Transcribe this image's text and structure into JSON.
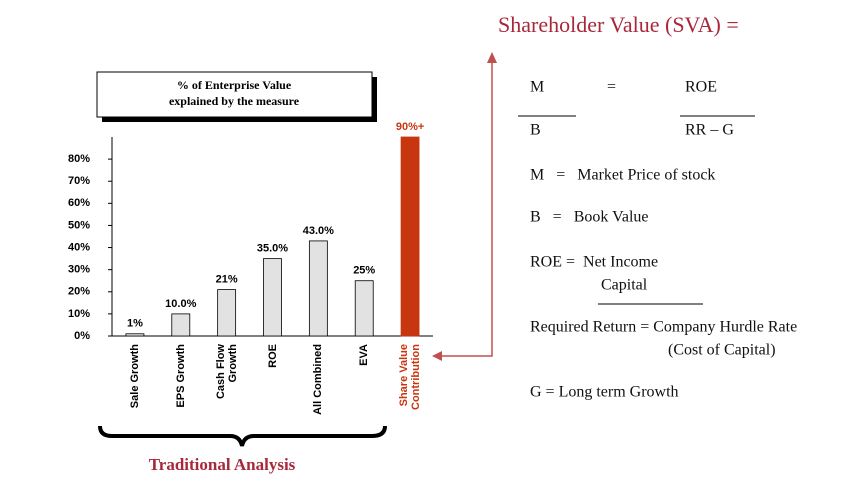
{
  "chart_data": {
    "type": "bar",
    "title": [
      "% of Enterprise Value",
      "explained by the measure"
    ],
    "categories": [
      "Sale Growth",
      "EPS Growth",
      "Cash Flow Growth",
      "ROE",
      "All Combined",
      "EVA",
      "Share Value Contribution"
    ],
    "values": [
      1,
      10,
      21,
      35,
      43,
      25,
      90
    ],
    "value_labels": [
      "1%",
      "10.0%",
      "21%",
      "35.0%",
      "43.0%",
      "25%",
      "90%+"
    ],
    "colors": [
      "#e2e2e2",
      "#e2e2e2",
      "#e2e2e2",
      "#e2e2e2",
      "#e2e2e2",
      "#e2e2e2",
      "#c8360f"
    ],
    "ylim": [
      0,
      90
    ],
    "yticks": [
      {
        "value": 0,
        "label": "0%"
      },
      {
        "value": 10,
        "label": "10%"
      },
      {
        "value": 20,
        "label": "20%"
      },
      {
        "value": 30,
        "label": "30%"
      },
      {
        "value": 40,
        "label": "40%"
      },
      {
        "value": 50,
        "label": "50%"
      },
      {
        "value": 60,
        "label": "60%"
      },
      {
        "value": 70,
        "label": "70%"
      },
      {
        "value": 80,
        "label": "80%"
      }
    ],
    "group_label": "Traditional Analysis"
  },
  "sva": {
    "heading": "Shareholder Value (SVA) =",
    "m": "M",
    "eq": "=",
    "roe": "ROE",
    "b": "B",
    "rr_g": "RR – G",
    "m_def": "M   =   Market Price of stock",
    "b_def": "B   =   Book Value",
    "roe_def": "ROE =  Net Income",
    "roe_den": "Capital",
    "rr_def": "Required Return = Company Hurdle Rate",
    "rr_note": "(Cost of Capital)",
    "g_def": "G = Long term Growth"
  }
}
